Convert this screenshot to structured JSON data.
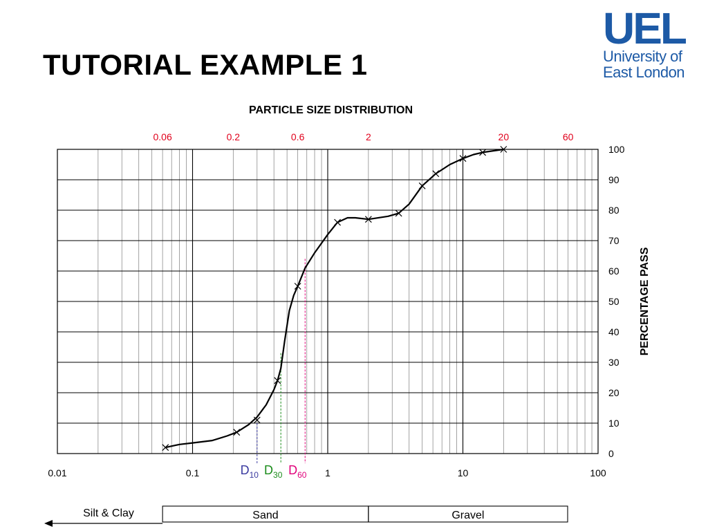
{
  "slide": {
    "title": "TUTORIAL EXAMPLE 1"
  },
  "logo": {
    "mark": "UEL",
    "line1": "University of",
    "line2": "East London",
    "color": "#1d5aa6"
  },
  "chart_data": {
    "type": "line",
    "title": "PARTICLE SIZE DISTRIBUTION",
    "xlabel": "",
    "ylabel": "PERCENTAGE PASS",
    "x_scale": "log",
    "xlim": [
      0.01,
      100
    ],
    "ylim": [
      0,
      100
    ],
    "grid": true,
    "x_ticks": [
      {
        "value": 0.01,
        "label": "0.01"
      },
      {
        "value": 0.1,
        "label": "0.1"
      },
      {
        "value": 1,
        "label": "1"
      },
      {
        "value": 10,
        "label": "10"
      },
      {
        "value": 100,
        "label": "100"
      }
    ],
    "y_ticks": [
      {
        "value": 0,
        "label": "0"
      },
      {
        "value": 10,
        "label": "10"
      },
      {
        "value": 20,
        "label": "20"
      },
      {
        "value": 30,
        "label": "30"
      },
      {
        "value": 40,
        "label": "40"
      },
      {
        "value": 50,
        "label": "50"
      },
      {
        "value": 60,
        "label": "60"
      },
      {
        "value": 70,
        "label": "70"
      },
      {
        "value": 80,
        "label": "80"
      },
      {
        "value": 90,
        "label": "90"
      },
      {
        "value": 100,
        "label": "100"
      }
    ],
    "top_ticks": [
      {
        "value": 0.06,
        "label": "0.06"
      },
      {
        "value": 0.2,
        "label": "0.2"
      },
      {
        "value": 0.6,
        "label": "0.6"
      },
      {
        "value": 2,
        "label": "2"
      },
      {
        "value": 20,
        "label": "20"
      },
      {
        "value": 60,
        "label": "60"
      }
    ],
    "series": [
      {
        "points": [
          {
            "x": 0.063,
            "y": 2
          },
          {
            "x": 0.212,
            "y": 7
          },
          {
            "x": 0.3,
            "y": 11
          },
          {
            "x": 0.425,
            "y": 24
          },
          {
            "x": 0.6,
            "y": 55
          },
          {
            "x": 1.18,
            "y": 76
          },
          {
            "x": 2,
            "y": 77
          },
          {
            "x": 3.35,
            "y": 79
          },
          {
            "x": 5,
            "y": 88
          },
          {
            "x": 6.3,
            "y": 92
          },
          {
            "x": 10,
            "y": 97
          },
          {
            "x": 14,
            "y": 99
          },
          {
            "x": 20,
            "y": 100
          }
        ],
        "curve": [
          {
            "x": 0.063,
            "y": 2
          },
          {
            "x": 0.08,
            "y": 3
          },
          {
            "x": 0.1,
            "y": 3.5
          },
          {
            "x": 0.14,
            "y": 4.3
          },
          {
            "x": 0.18,
            "y": 5.8
          },
          {
            "x": 0.212,
            "y": 7
          },
          {
            "x": 0.26,
            "y": 9.5
          },
          {
            "x": 0.3,
            "y": 12
          },
          {
            "x": 0.35,
            "y": 16
          },
          {
            "x": 0.4,
            "y": 21
          },
          {
            "x": 0.425,
            "y": 24
          },
          {
            "x": 0.45,
            "y": 28
          },
          {
            "x": 0.48,
            "y": 37
          },
          {
            "x": 0.52,
            "y": 47
          },
          {
            "x": 0.56,
            "y": 52
          },
          {
            "x": 0.6,
            "y": 55
          },
          {
            "x": 0.68,
            "y": 61
          },
          {
            "x": 0.8,
            "y": 66
          },
          {
            "x": 1.0,
            "y": 72
          },
          {
            "x": 1.18,
            "y": 76
          },
          {
            "x": 1.4,
            "y": 77.5
          },
          {
            "x": 1.6,
            "y": 77.5
          },
          {
            "x": 2,
            "y": 77
          },
          {
            "x": 2.8,
            "y": 78
          },
          {
            "x": 3.35,
            "y": 79
          },
          {
            "x": 4,
            "y": 82
          },
          {
            "x": 5,
            "y": 88
          },
          {
            "x": 6.3,
            "y": 92
          },
          {
            "x": 8,
            "y": 95
          },
          {
            "x": 10,
            "y": 97
          },
          {
            "x": 12,
            "y": 98.3
          },
          {
            "x": 14,
            "y": 99
          },
          {
            "x": 20,
            "y": 100
          }
        ],
        "color": "#000000"
      }
    ],
    "annotations": [
      {
        "label": "D",
        "sub": "10",
        "x": 0.3,
        "y": 10,
        "color": "#3b3ba0"
      },
      {
        "label": "D",
        "sub": "30",
        "x": 0.45,
        "y": 33,
        "color": "#1a8c1a"
      },
      {
        "label": "D",
        "sub": "60",
        "x": 0.68,
        "y": 64,
        "color": "#e0007a"
      }
    ],
    "soil_bands": [
      {
        "label": "Silt & Clay",
        "from": 0.01,
        "to": 0.06,
        "boxed": false
      },
      {
        "label": "Sand",
        "from": 0.06,
        "to": 2,
        "boxed": true
      },
      {
        "label": "Gravel",
        "from": 2,
        "to": 60,
        "boxed": true
      }
    ]
  }
}
